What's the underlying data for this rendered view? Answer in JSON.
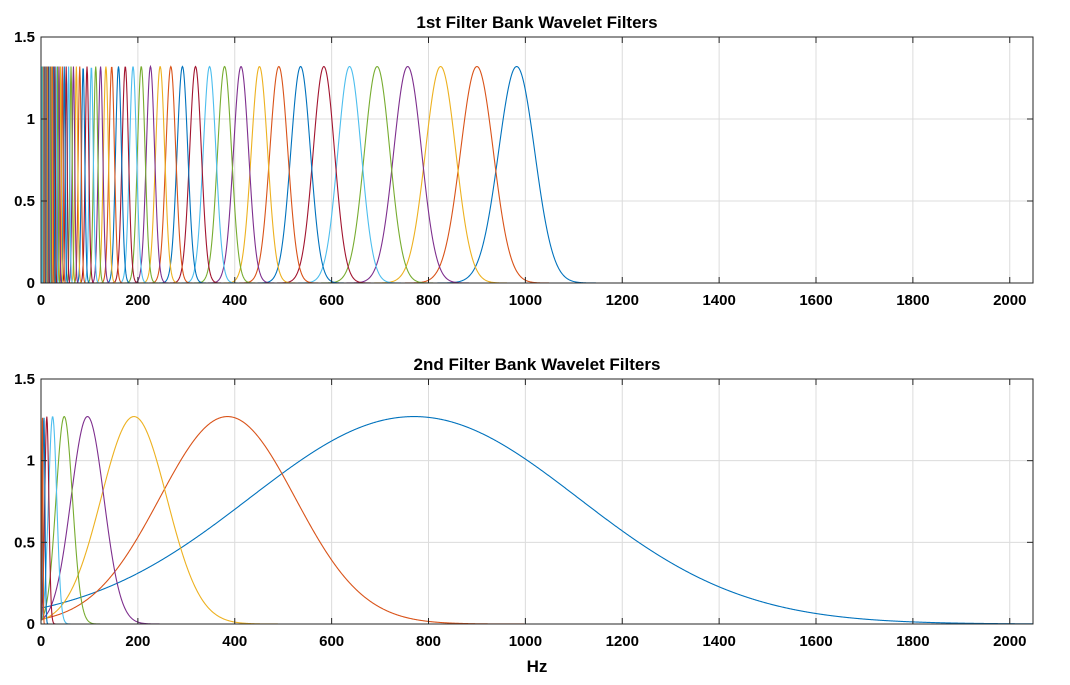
{
  "chart_data": [
    {
      "type": "line",
      "title": "1st Filter Bank Wavelet Filters",
      "xlabel": "",
      "ylabel": "",
      "xlim": [
        0,
        2048
      ],
      "ylim": [
        0,
        1.5
      ],
      "xticks": [
        0,
        200,
        400,
        600,
        800,
        1000,
        1200,
        1400,
        1600,
        1800,
        2000
      ],
      "yticks": [
        0,
        0.5,
        1,
        1.5
      ],
      "xtick_labels": [
        "0",
        "200",
        "400",
        "600",
        "800",
        "1000",
        "1200",
        "1400",
        "1600",
        "1800",
        "2000"
      ],
      "ytick_labels": [
        "0",
        "0.5",
        "1",
        "1.5"
      ],
      "grid": true,
      "peak": 1.32,
      "series_colors": [
        "#0072BD",
        "#D95319",
        "#EDB120",
        "#7E2F8E",
        "#77AC30",
        "#4DBEEE",
        "#A2142F"
      ],
      "series": [
        {
          "center": 982,
          "fwhm": 88
        },
        {
          "center": 900,
          "fwhm": 80
        },
        {
          "center": 825,
          "fwhm": 74
        },
        {
          "center": 757,
          "fwhm": 68
        },
        {
          "center": 694,
          "fwhm": 62
        },
        {
          "center": 637,
          "fwhm": 57
        },
        {
          "center": 584,
          "fwhm": 52
        },
        {
          "center": 536,
          "fwhm": 48
        },
        {
          "center": 491,
          "fwhm": 44
        },
        {
          "center": 451,
          "fwhm": 40
        },
        {
          "center": 413,
          "fwhm": 37
        },
        {
          "center": 379,
          "fwhm": 34
        },
        {
          "center": 348,
          "fwhm": 31
        },
        {
          "center": 319,
          "fwhm": 28.6
        },
        {
          "center": 292,
          "fwhm": 26.2
        },
        {
          "center": 268,
          "fwhm": 24.1
        },
        {
          "center": 246,
          "fwhm": 22.1
        },
        {
          "center": 226,
          "fwhm": 20.2
        },
        {
          "center": 207,
          "fwhm": 18.6
        },
        {
          "center": 190,
          "fwhm": 17.1
        },
        {
          "center": 174,
          "fwhm": 15.7
        },
        {
          "center": 160,
          "fwhm": 14.4
        },
        {
          "center": 146,
          "fwhm": 13.2
        },
        {
          "center": 134,
          "fwhm": 12.1
        },
        {
          "center": 123,
          "fwhm": 11.1
        },
        {
          "center": 113,
          "fwhm": 10.2
        },
        {
          "center": 104,
          "fwhm": 9.3
        },
        {
          "center": 95,
          "fwhm": 8.6
        },
        {
          "center": 87,
          "fwhm": 7.9
        },
        {
          "center": 80,
          "fwhm": 7.2
        },
        {
          "center": 73,
          "fwhm": 6.6
        },
        {
          "center": 67,
          "fwhm": 6.1
        },
        {
          "center": 62,
          "fwhm": 5.6
        },
        {
          "center": 57,
          "fwhm": 5.1
        },
        {
          "center": 52,
          "fwhm": 4.7
        },
        {
          "center": 48,
          "fwhm": 4.3
        },
        {
          "center": 44,
          "fwhm": 3.9
        },
        {
          "center": 40,
          "fwhm": 3.6
        },
        {
          "center": 37,
          "fwhm": 3.3
        },
        {
          "center": 34,
          "fwhm": 3.1
        },
        {
          "center": 31,
          "fwhm": 2.8
        },
        {
          "center": 28.5,
          "fwhm": 2.6
        },
        {
          "center": 26,
          "fwhm": 2.4
        },
        {
          "center": 24,
          "fwhm": 2.2
        },
        {
          "center": 22,
          "fwhm": 2.0
        },
        {
          "center": 20,
          "fwhm": 1.8
        },
        {
          "center": 18.5,
          "fwhm": 1.7
        },
        {
          "center": 17,
          "fwhm": 1.5
        },
        {
          "center": 15.5,
          "fwhm": 1.4
        },
        {
          "center": 14.2,
          "fwhm": 1.3
        },
        {
          "center": 13,
          "fwhm": 1.2
        },
        {
          "center": 12,
          "fwhm": 1.1
        },
        {
          "center": 11,
          "fwhm": 1.0
        },
        {
          "center": 10,
          "fwhm": 0.9
        },
        {
          "center": 9,
          "fwhm": 0.8
        },
        {
          "center": 8,
          "fwhm": 0.75
        },
        {
          "center": 7,
          "fwhm": 0.7
        },
        {
          "center": 6,
          "fwhm": 0.65
        },
        {
          "center": 5,
          "fwhm": 0.6
        },
        {
          "center": 4,
          "fwhm": 0.55
        },
        {
          "center": 3,
          "fwhm": 0.5
        },
        {
          "center": 2,
          "fwhm": 0.5
        }
      ]
    },
    {
      "type": "line",
      "title": "2nd Filter Bank Wavelet Filters",
      "xlabel": "Hz",
      "ylabel": "",
      "xlim": [
        0,
        2048
      ],
      "ylim": [
        0,
        1.5
      ],
      "xticks": [
        0,
        200,
        400,
        600,
        800,
        1000,
        1200,
        1400,
        1600,
        1800,
        2000
      ],
      "yticks": [
        0,
        0.5,
        1,
        1.5
      ],
      "xtick_labels": [
        "0",
        "200",
        "400",
        "600",
        "800",
        "1000",
        "1200",
        "1400",
        "1600",
        "1800",
        "2000"
      ],
      "ytick_labels": [
        "0",
        "0.5",
        "1",
        "1.5"
      ],
      "grid": true,
      "peak": 1.27,
      "series_colors": [
        "#0072BD",
        "#D95319",
        "#EDB120",
        "#7E2F8E",
        "#77AC30",
        "#4DBEEE",
        "#A2142F"
      ],
      "series": [
        {
          "center": 770,
          "fwhm": 800
        },
        {
          "center": 385,
          "fwhm": 330
        },
        {
          "center": 192,
          "fwhm": 160
        },
        {
          "center": 96,
          "fwhm": 80
        },
        {
          "center": 48,
          "fwhm": 40
        },
        {
          "center": 24,
          "fwhm": 20
        },
        {
          "center": 12,
          "fwhm": 10
        },
        {
          "center": 6,
          "fwhm": 5
        },
        {
          "center": 3,
          "fwhm": 2.5
        }
      ]
    }
  ]
}
